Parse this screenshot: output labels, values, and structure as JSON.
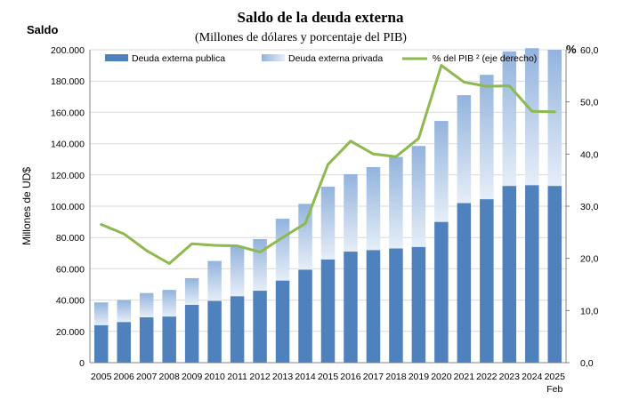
{
  "chart_data": {
    "type": "bar",
    "title": "Saldo de la deuda externa",
    "subtitle": "(Millones  de dólares y porcentaje del PIB)",
    "left_axis_title": "Saldo",
    "right_axis_title": "%",
    "ylabel": "Millones de UD$",
    "ylim": [
      0,
      200000
    ],
    "y2lim": [
      0,
      60
    ],
    "y_ticks": [
      "0",
      "20.000",
      "40.000",
      "60.000",
      "80.000",
      "100.000",
      "120.000",
      "140.000",
      "160.000",
      "180.000",
      "200.000"
    ],
    "y2_ticks": [
      "0,0",
      "10,0",
      "20,0",
      "30,0",
      "40,0",
      "50,0",
      "60,0"
    ],
    "categories": [
      "2005",
      "2006",
      "2007",
      "2008",
      "2009",
      "2010",
      "2011",
      "2012",
      "2013",
      "2014",
      "2015",
      "2016",
      "2017",
      "2018",
      "2019",
      "2020",
      "2021",
      "2022",
      "2023",
      "2024",
      "2025"
    ],
    "category_sublabel": {
      "index": 20,
      "text": "Feb"
    },
    "series": [
      {
        "name": "Deuda externa publica",
        "kind": "bar-stack",
        "color": "#4F81BD",
        "values": [
          24000,
          26000,
          29000,
          29500,
          37000,
          39500,
          42500,
          46000,
          52500,
          59500,
          66000,
          71000,
          72000,
          73000,
          74000,
          90000,
          102000,
          104500,
          113000,
          113500,
          113000
        ]
      },
      {
        "name": "Deuda externa privada",
        "kind": "bar-stack",
        "color": "#C6D9F1",
        "values": [
          14500,
          14000,
          15500,
          17000,
          17000,
          25500,
          32000,
          33000,
          39500,
          42000,
          46500,
          49500,
          53000,
          58500,
          64500,
          64500,
          69000,
          79500,
          86000,
          87500,
          87000
        ]
      },
      {
        "name": "% del PIB ² (eje derecho)",
        "kind": "line",
        "axis": "right",
        "color": "#8DB94F",
        "values": [
          26.5,
          24.7,
          21.5,
          19.0,
          22.8,
          22.5,
          22.4,
          21.2,
          24.0,
          26.7,
          38.0,
          42.5,
          40.0,
          39.5,
          43.0,
          57.0,
          53.8,
          53.0,
          53.1,
          48.2,
          48.1
        ]
      }
    ],
    "legend_position": "top"
  }
}
